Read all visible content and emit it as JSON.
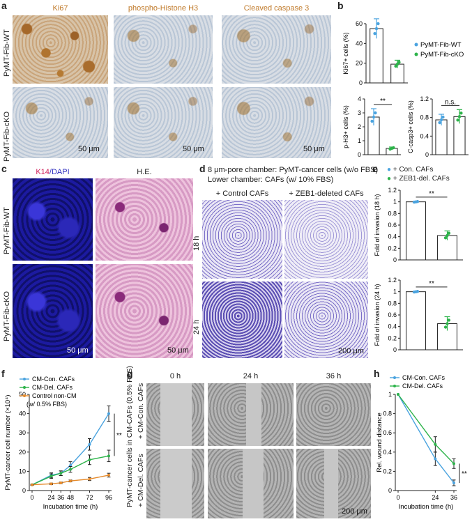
{
  "panel_a": {
    "label": "a",
    "columns": [
      "Ki67",
      "phospho-Histone H3",
      "Cleaved caspase 3"
    ],
    "rows": [
      "PyMT-Fib-WT",
      "PyMT-Fib-cKO"
    ],
    "scale": "50 μm"
  },
  "panel_b": {
    "label": "b",
    "legend": [
      "PyMT-Fib-WT",
      "PyMT-Fib-cKO"
    ],
    "colors": {
      "wt": "#4aa3df",
      "cko": "#2db34a"
    }
  },
  "panel_c": {
    "label": "c",
    "col1_k14": "K14",
    "col1_dapi": "/DAPI",
    "col2": "H.E.",
    "rows": [
      "PyMT-Fib-WT",
      "PyMT-Fib-cKO"
    ],
    "scale": "50 μm"
  },
  "panel_d": {
    "label": "d",
    "desc1": "8 μm-pore chamber: PyMT-cancer cells (w/o FBS)",
    "desc2": "Lower chamber: CAFs (w/ 10% FBS)",
    "columns": [
      "+ Control CAFs",
      "+ ZEB1-deleted CAFs"
    ],
    "rows": [
      "18 h",
      "24 h"
    ],
    "scale": "200 μm"
  },
  "panel_e": {
    "label": "e",
    "legend": [
      "+ Con. CAFs",
      "+ ZEB1-del. CAFs"
    ]
  },
  "panel_f": {
    "label": "f"
  },
  "panel_g": {
    "label": "g",
    "side_label": "PyMT-cancer cells in CM-CAFs (0.5% FBS)",
    "columns": [
      "0 h",
      "24 h",
      "36 h"
    ],
    "rows": [
      "+ CM-Con. CAFs",
      "+ CM-Del. CAFs"
    ],
    "scale": "200 μm"
  },
  "panel_h": {
    "label": "h"
  },
  "chart_data": [
    {
      "id": "b1",
      "type": "bar",
      "categories": [
        "PyMT-Fib-WT",
        "PyMT-Fib-cKO"
      ],
      "values": [
        55,
        19
      ],
      "errors": [
        10,
        4
      ],
      "ylabel": "Ki67+ cells (%)",
      "ylim": [
        0,
        60
      ],
      "yticks": [
        0,
        20,
        40,
        60
      ],
      "significance": "**"
    },
    {
      "id": "b2",
      "type": "bar",
      "categories": [
        "PyMT-Fib-WT",
        "PyMT-Fib-cKO"
      ],
      "values": [
        2.7,
        0.45
      ],
      "errors": [
        0.6,
        0.1
      ],
      "ylabel": "p-H3+ cells (%)",
      "ylim": [
        0,
        4
      ],
      "yticks": [
        0,
        1,
        2,
        3,
        4
      ],
      "significance": "**"
    },
    {
      "id": "b3",
      "type": "bar",
      "categories": [
        "PyMT-Fib-WT",
        "PyMT-Fib-cKO"
      ],
      "values": [
        0.75,
        0.82
      ],
      "errors": [
        0.12,
        0.15
      ],
      "ylabel": "C-casp3+ cells (%)",
      "ylim": [
        0,
        1.2
      ],
      "yticks": [
        0,
        0.4,
        0.8,
        1.2
      ],
      "significance": "n.s."
    },
    {
      "id": "e1",
      "type": "bar",
      "categories": [
        "+ Con. CAFs",
        "+ ZEB1-del. CAFs"
      ],
      "values": [
        1.0,
        0.42
      ],
      "errors": [
        0.01,
        0.08
      ],
      "ylabel": "Fold of invasion (18 h)",
      "ylim": [
        0,
        1.2
      ],
      "yticks": [
        0,
        0.2,
        0.4,
        0.6,
        0.8,
        1.0,
        1.2
      ],
      "significance": "**"
    },
    {
      "id": "e2",
      "type": "bar",
      "categories": [
        "+ Con. CAFs",
        "+ ZEB1-del. CAFs"
      ],
      "values": [
        1.0,
        0.45
      ],
      "errors": [
        0.01,
        0.12
      ],
      "ylabel": "Fold of invasion (24 h)",
      "ylim": [
        0,
        1.2
      ],
      "yticks": [
        0,
        0.2,
        0.4,
        0.6,
        0.8,
        1.0,
        1.2
      ],
      "significance": "**"
    },
    {
      "id": "f",
      "type": "line",
      "x": [
        0,
        24,
        36,
        48,
        72,
        96
      ],
      "xticks": [
        0,
        24,
        36,
        48,
        72,
        96
      ],
      "series": [
        {
          "name": "CM-Con. CAFs",
          "values": [
            3,
            8,
            9,
            13,
            24,
            40
          ],
          "errors": [
            0.3,
            1.2,
            1.2,
            2,
            3,
            4
          ],
          "color": "#4aa3df"
        },
        {
          "name": "CM-Del. CAFs",
          "values": [
            3,
            7.5,
            9,
            11,
            16,
            18
          ],
          "errors": [
            0.3,
            1.2,
            1.2,
            1.5,
            2.5,
            3
          ],
          "color": "#2db34a"
        },
        {
          "name": "Control non-CM",
          "values": [
            3,
            3.5,
            4,
            5,
            6,
            8
          ],
          "errors": [
            0.2,
            0.4,
            0.4,
            0.5,
            0.8,
            1
          ],
          "color": "#e58a2b"
        }
      ],
      "legend_note": "(w/ 0.5% FBS)",
      "xlabel": "Incubation time (h)",
      "ylabel": "PyMT-cancer cell number (×10⁴)",
      "ylim": [
        0,
        50
      ],
      "yticks": [
        0,
        10,
        20,
        30,
        40,
        50
      ],
      "significance": "**"
    },
    {
      "id": "h",
      "type": "line",
      "x": [
        0,
        24,
        36
      ],
      "xticks": [
        0,
        24,
        36
      ],
      "series": [
        {
          "name": "CM-Con. CAFs",
          "values": [
            1.0,
            0.33,
            0.08
          ],
          "errors": [
            0,
            0.07,
            0.03
          ],
          "color": "#4aa3df"
        },
        {
          "name": "CM-Del. CAFs",
          "values": [
            1.0,
            0.48,
            0.28
          ],
          "errors": [
            0,
            0.08,
            0.05
          ],
          "color": "#2db34a"
        }
      ],
      "xlabel": "Incubation time (h)",
      "ylabel": "Rel. wound distance",
      "ylim": [
        0,
        1.0
      ],
      "yticks": [
        0,
        0.2,
        0.4,
        0.6,
        0.8,
        1.0
      ],
      "significance": "**"
    }
  ]
}
